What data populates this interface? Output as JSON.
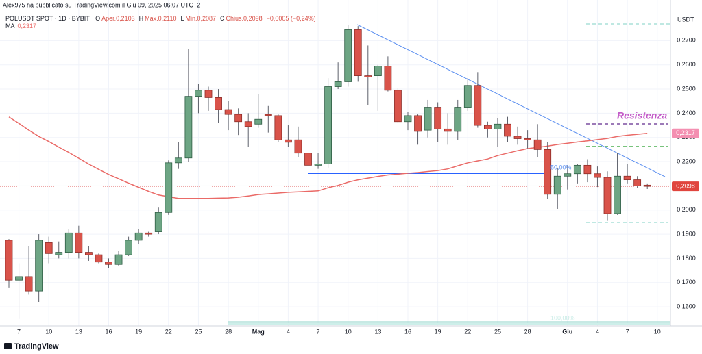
{
  "chart_data": {
    "type": "candlestick",
    "title": "Alex975 ha pubblicato su TradingView.com il Giu 09, 2025 06:07 UTC+2",
    "subtitle": "POLUSDT SPOT · 1D · BYBIT",
    "ohlc_legend": [
      "O",
      "Aper.0,2103",
      "H",
      "Max.0,2110",
      "L",
      "Min.0,2087",
      "C",
      "Chius.0,2098",
      "−0,0005 (−0,24%)"
    ],
    "ma_label": "MA",
    "ma_value_label": "0,2317",
    "last_price_label": "0,2098",
    "y_axis_label": "USDT",
    "annotations": [
      "Resistenza",
      "50,00%",
      "100,00%"
    ],
    "categories": [
      null,
      "7",
      null,
      null,
      "10",
      null,
      null,
      "13",
      null,
      null,
      "16",
      null,
      null,
      "19",
      null,
      null,
      "22",
      null,
      null,
      "25",
      null,
      null,
      "28",
      null,
      null,
      "Mag",
      null,
      null,
      "4",
      null,
      null,
      "7",
      null,
      null,
      "10",
      null,
      null,
      "13",
      null,
      null,
      "16",
      null,
      null,
      "19",
      null,
      null,
      "22",
      null,
      null,
      "25",
      null,
      null,
      "28",
      null,
      null,
      null,
      "Giu",
      null,
      null,
      "4",
      null,
      null,
      "7",
      null,
      null,
      "10"
    ],
    "open": [
      0.1875,
      0.171,
      0.1725,
      0.1665,
      0.1865,
      0.1815,
      0.1825,
      0.1905,
      0.1825,
      0.1815,
      0.1785,
      0.1775,
      0.1815,
      0.1875,
      0.1905,
      0.191,
      0.199,
      0.2195,
      0.2215,
      0.247,
      0.2495,
      0.2465,
      0.2415,
      0.2395,
      0.2365,
      0.2355,
      0.2395,
      0.239,
      0.229,
      0.229,
      0.2235,
      0.2185,
      0.219,
      0.251,
      0.253,
      0.2745,
      0.2555,
      0.2555,
      0.2595,
      0.2495,
      0.2365,
      0.239,
      0.233,
      0.2425,
      0.2335,
      0.2325,
      0.2425,
      0.2515,
      0.235,
      0.2335,
      0.2355,
      0.2305,
      0.2295,
      0.229,
      0.225,
      0.2065,
      0.214,
      0.215,
      0.2185,
      0.215,
      0.2135,
      0.1985,
      0.214,
      0.2125,
      0.2103,
      null
    ],
    "high": [
      0.188,
      0.178,
      0.185,
      0.19,
      0.189,
      0.187,
      0.192,
      0.1935,
      0.185,
      0.182,
      0.18,
      0.183,
      0.189,
      0.192,
      0.191,
      0.201,
      0.2205,
      0.228,
      0.2665,
      0.252,
      0.251,
      0.25,
      0.245,
      0.242,
      0.24,
      0.248,
      0.243,
      0.2395,
      0.235,
      0.2345,
      0.225,
      0.2235,
      0.2545,
      0.261,
      0.2765,
      0.276,
      0.268,
      0.26,
      0.2635,
      0.2505,
      0.2405,
      0.2395,
      0.2455,
      0.2445,
      0.24,
      0.2455,
      0.2545,
      0.257,
      0.2365,
      0.238,
      0.2385,
      0.2345,
      0.233,
      0.2355,
      0.228,
      0.2175,
      0.2185,
      0.219,
      0.221,
      0.218,
      0.216,
      0.2235,
      0.219,
      0.214,
      0.211,
      null
    ],
    "low": [
      0.168,
      0.155,
      0.165,
      0.162,
      0.178,
      0.18,
      0.18,
      0.18,
      0.179,
      0.178,
      0.176,
      0.177,
      0.181,
      0.186,
      0.189,
      0.19,
      0.198,
      0.217,
      0.22,
      0.24,
      0.241,
      0.236,
      0.233,
      0.231,
      0.226,
      0.234,
      0.232,
      0.228,
      0.226,
      0.222,
      0.2085,
      0.217,
      0.2175,
      0.25,
      0.251,
      0.253,
      0.2435,
      0.241,
      0.249,
      0.236,
      0.233,
      0.227,
      0.23,
      0.228,
      0.227,
      0.229,
      0.241,
      0.234,
      0.23,
      0.226,
      0.228,
      0.227,
      0.2255,
      0.222,
      0.2045,
      0.2005,
      0.2085,
      0.211,
      0.2115,
      0.2095,
      0.1955,
      0.198,
      0.211,
      0.209,
      0.2087,
      null
    ],
    "close": [
      0.171,
      0.1725,
      0.1665,
      0.1875,
      0.182,
      0.1825,
      0.1905,
      0.1825,
      0.1815,
      0.1785,
      0.1775,
      0.1815,
      0.1875,
      0.1905,
      0.19,
      0.199,
      0.2195,
      0.2215,
      0.247,
      0.2495,
      0.2465,
      0.2415,
      0.2395,
      0.2365,
      0.2345,
      0.2375,
      0.239,
      0.229,
      0.228,
      0.2235,
      0.2185,
      0.219,
      0.251,
      0.253,
      0.2745,
      0.2555,
      0.255,
      0.2595,
      0.2495,
      0.2365,
      0.239,
      0.2325,
      0.2425,
      0.2335,
      0.2325,
      0.2425,
      0.2515,
      0.235,
      0.2335,
      0.2355,
      0.2305,
      0.2295,
      0.229,
      0.225,
      0.2065,
      0.214,
      0.215,
      0.2185,
      0.215,
      0.2135,
      0.1985,
      0.214,
      0.2125,
      0.21,
      0.2098,
      null
    ],
    "series": [
      {
        "name": "MA",
        "color": "#ea6a67",
        "values": [
          0.2385,
          0.2358,
          0.233,
          0.2304,
          0.2283,
          0.226,
          0.2238,
          0.2214,
          0.219,
          0.2168,
          0.2147,
          0.2129,
          0.2111,
          0.2094,
          0.2077,
          0.2062,
          0.2055,
          0.2048,
          0.2048,
          0.2048,
          0.2048,
          0.2049,
          0.205,
          0.2053,
          0.2058,
          0.2064,
          0.2067,
          0.207,
          0.2073,
          0.2075,
          0.2077,
          0.2079,
          0.2092,
          0.2102,
          0.2115,
          0.2125,
          0.2132,
          0.2139,
          0.2145,
          0.2148,
          0.2152,
          0.2155,
          0.2159,
          0.2163,
          0.217,
          0.2183,
          0.2195,
          0.2203,
          0.2211,
          0.2225,
          0.2235,
          0.2245,
          0.2254,
          0.2259,
          0.2264,
          0.2271,
          0.2276,
          0.2281,
          0.2286,
          0.2291,
          0.2296,
          0.2304,
          0.2309,
          0.2313,
          0.2317,
          null
        ]
      }
    ],
    "up_color": "#6da584",
    "down_color": "#d9534a",
    "ylim": [
      0.1521,
      0.2868
    ],
    "yticks": [
      {
        "value": 0.16,
        "label": "0,1600"
      },
      {
        "value": 0.17,
        "label": "0,1700"
      },
      {
        "value": 0.18,
        "label": "0,1800"
      },
      {
        "value": 0.19,
        "label": "0,1900"
      },
      {
        "value": 0.2,
        "label": "0,2000"
      },
      {
        "value": 0.21,
        "label": "0,2100"
      },
      {
        "value": 0.22,
        "label": "0,2200"
      },
      {
        "value": 0.23,
        "label": "0,2300"
      },
      {
        "value": 0.24,
        "label": "0,2400"
      },
      {
        "value": 0.25,
        "label": "0,2500"
      },
      {
        "value": 0.26,
        "label": "0,2600"
      },
      {
        "value": 0.27,
        "label": "0,2700"
      }
    ],
    "grid": true
  },
  "footer": {
    "brand": "TradingView"
  }
}
